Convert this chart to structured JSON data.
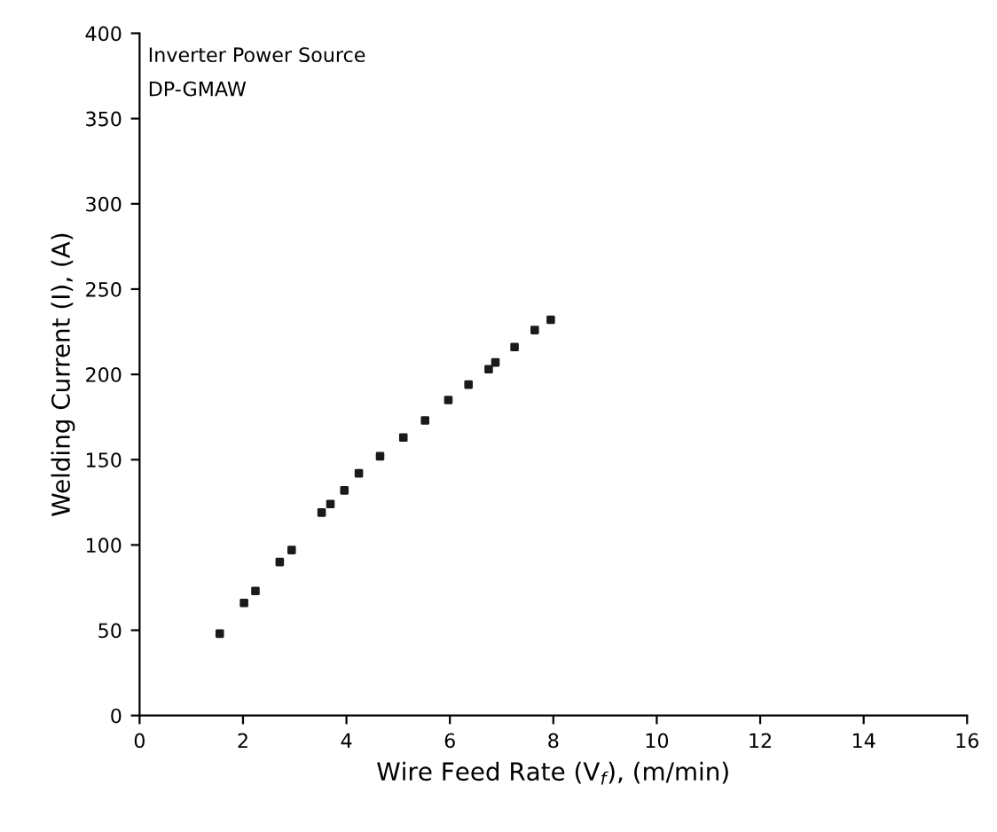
{
  "chart_data": {
    "type": "scatter",
    "xlabel": "Wire Feed Rate (V$_{f}$), (m/min)",
    "ylabel": "Welding Current (I), (A)",
    "annotations": [
      "Inverter Power Source",
      "DP-GMAW"
    ],
    "x": [
      1.55,
      2.02,
      2.24,
      2.71,
      2.94,
      3.52,
      3.69,
      3.96,
      4.24,
      4.65,
      5.1,
      5.52,
      5.97,
      6.36,
      6.75,
      6.88,
      7.25,
      7.64,
      7.95
    ],
    "series": [
      {
        "color": "#1a1a1a",
        "values": [
          48,
          66,
          73,
          90,
          97,
          119,
          124,
          132,
          142,
          152,
          163,
          173,
          185,
          194,
          203,
          207,
          216,
          226,
          232
        ]
      }
    ],
    "xlim": [
      0,
      16
    ],
    "xticks": [
      0,
      2,
      4,
      6,
      8,
      10,
      12,
      14,
      16
    ],
    "ylim": [
      0,
      400
    ],
    "yticks": [
      0,
      50,
      100,
      150,
      200,
      250,
      300,
      350,
      400
    ],
    "marker": "square",
    "grid": false
  }
}
